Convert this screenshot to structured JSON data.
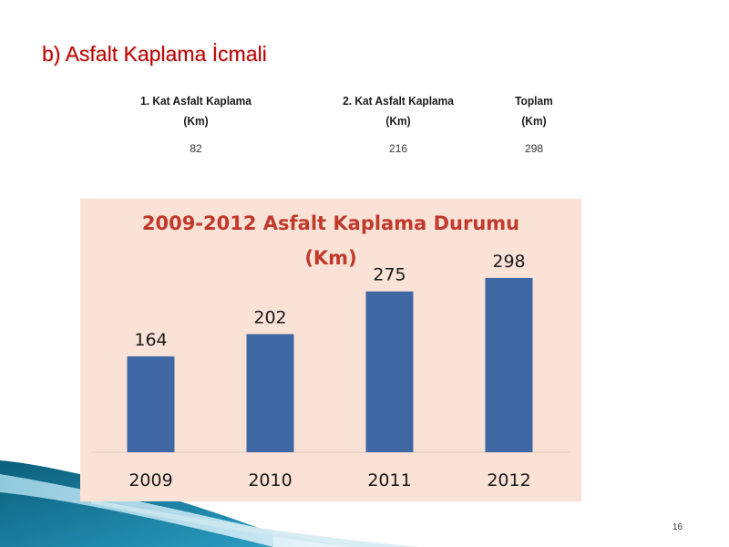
{
  "slide": {
    "heading": "b) Asfalt Kaplama İcmali",
    "page_number": "16"
  },
  "summary_table": {
    "headers": [
      [
        "1. Kat Asfalt Kaplama",
        "(Km)"
      ],
      [
        "2. Kat Asfalt Kaplama",
        "(Km)"
      ],
      [
        "Toplam",
        "(Km)"
      ]
    ],
    "values": [
      "82",
      "216",
      "298"
    ]
  },
  "chart_data": {
    "type": "bar",
    "title": "2009-2012 Asfalt Kaplama Durumu",
    "subtitle": "(Km)",
    "categories": [
      "2009",
      "2010",
      "2011",
      "2012"
    ],
    "values": [
      164,
      202,
      275,
      298
    ],
    "ylim": [
      0,
      340
    ],
    "grid": false,
    "legend": "none",
    "xlabel": "",
    "ylabel": ""
  },
  "colors": {
    "heading": "#c00000",
    "chart_title": "#c0392b",
    "bar": "#3f67a3",
    "panel_bg": "#fbe2d6"
  }
}
